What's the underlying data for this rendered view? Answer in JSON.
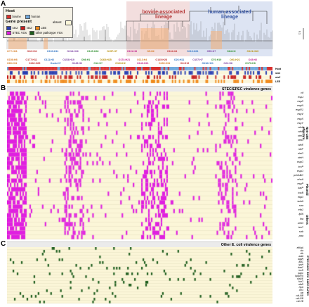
{
  "panels": {
    "a": "A",
    "b": "B",
    "c": "C"
  },
  "host_legend": {
    "title": "Host",
    "items": [
      {
        "label": "bovine",
        "color": "#d8302e"
      },
      {
        "label": "human",
        "color": "#6fa8dc"
      }
    ]
  },
  "gene_legend": {
    "title": "Gene present",
    "absent_label": "absent",
    "items": [
      {
        "label": "stx1",
        "color": "#2a3fb0"
      },
      {
        "label": "stx2",
        "color": "#c41e1e"
      },
      {
        "label": "LEE",
        "color": "#f08a1c"
      },
      {
        "label": "STEC VGs",
        "color": "#e020e0"
      },
      {
        "label": "other pathotype VGs",
        "color": "#1e5e1e"
      }
    ],
    "absent_color": "#fbf6d8"
  },
  "lineages": {
    "bovine": "bovine-associated lineage",
    "human": "human-associated lineage"
  },
  "scale_label": "0.1",
  "serotypes_top": [
    "O??:H11",
    "O26:H11",
    "O103:H11",
    "O118:H16",
    "O145:H28",
    "O157:H7",
    "O111:H8",
    "O5:H2",
    "O104:H4",
    "O113:H21",
    "O55:H7",
    "O84:H2",
    "O121:H19"
  ],
  "serotypes_row1": [
    "O156:H8",
    "O177:H11",
    "O111:H2",
    "O153:H19",
    "O98:H1",
    "O165:H25",
    "O174:H21",
    "O113:H4",
    "O145:H28",
    "O26:H11",
    "O157:H7",
    "O76:H19",
    "O91:H21",
    "O45:H2"
  ],
  "serotypes_row2": [
    "O69:H11",
    "O182:H25",
    "Ounk:H?",
    "O145:H2",
    "O12:H?",
    "O103:H2",
    "O146:H21",
    "O130:H11",
    "O8:H19",
    "O116:H21",
    "O22:H8",
    "O179:H8"
  ],
  "track_labels": [
    "Host",
    "stx1",
    "stx2",
    "LEE"
  ],
  "section_b": {
    "title": "STEC/EPEC virulence genes",
    "groups": [
      {
        "name": "Non-LEE effectors",
        "genes": [
          "cif",
          "espJ",
          "espK",
          "espN",
          "espR1",
          "espV",
          "espX",
          "espY",
          "nleA",
          "nleB",
          "nleC",
          "nleD",
          "nleE",
          "nleF",
          "nleG",
          "nleH",
          "ospG",
          "tccP",
          "espO"
        ]
      },
      {
        "name": "",
        "genes": [
          "pchABC"
        ]
      },
      {
        "name": "Plasmid",
        "genes": [
          "ehxA",
          "espP",
          "katP",
          "toxB",
          "etpD"
        ]
      },
      {
        "name": "Others",
        "genes": [
          "subA",
          "saa",
          "efa1",
          "lpfA",
          "iha",
          "ureD",
          "terC",
          "sab",
          "paa"
        ]
      }
    ]
  },
  "section_c": {
    "title": "Other E. coli virulence genes",
    "groups": [
      "ETEC",
      "EAEC",
      "EIEC",
      "DAEC",
      "ExPEC"
    ],
    "genes": [
      "eltIIaA",
      "sta",
      "stb",
      "aatA",
      "aggR",
      "aaiC",
      "ipaH",
      "daaC",
      "iucD",
      "papC",
      "kpsMTII",
      "sfaDE",
      "focG",
      "afaD",
      "hlyA",
      "cnf1",
      "vat",
      "cdt-IIIB",
      "cdt-IVB",
      "cdt-VB"
    ]
  }
}
